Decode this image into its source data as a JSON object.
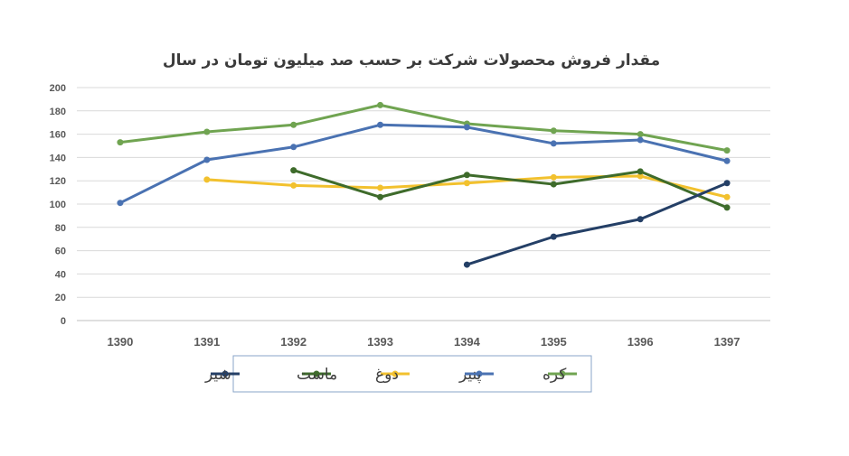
{
  "chart_data": {
    "type": "line",
    "title": "مقدار فروش محصولات شرکت بر حسب صد میلیون تومان در سال",
    "xlabel": "",
    "ylabel": "",
    "categories": [
      "1390",
      "1391",
      "1392",
      "1393",
      "1394",
      "1395",
      "1396",
      "1397"
    ],
    "ylim": [
      0,
      200
    ],
    "yticks": [
      0,
      20,
      40,
      60,
      80,
      100,
      120,
      140,
      160,
      180,
      200
    ],
    "grid": true,
    "legend_position": "bottom",
    "series": [
      {
        "name": "کره",
        "color": "#70a451",
        "values": [
          153,
          162,
          168,
          185,
          169,
          163,
          160,
          146
        ]
      },
      {
        "name": "پنیر",
        "color": "#4a72b2",
        "values": [
          101,
          138,
          149,
          168,
          166,
          152,
          155,
          137
        ]
      },
      {
        "name": "دوغ",
        "color": "#f2c12e",
        "values": [
          null,
          121,
          116,
          114,
          118,
          123,
          124,
          106
        ]
      },
      {
        "name": "ماست",
        "color": "#3e6b2b",
        "values": [
          null,
          null,
          129,
          106,
          125,
          117,
          128,
          97
        ]
      },
      {
        "name": "شیر",
        "color": "#243f66",
        "values": [
          null,
          null,
          null,
          null,
          48,
          72,
          87,
          118
        ]
      }
    ]
  }
}
